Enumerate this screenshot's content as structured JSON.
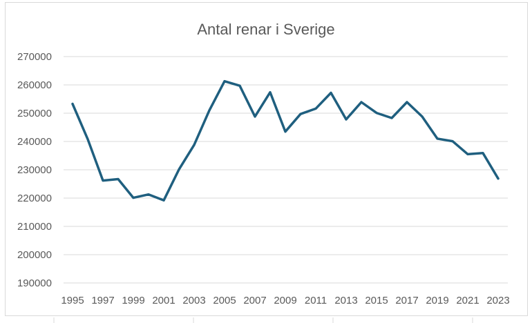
{
  "chart_data": {
    "type": "line",
    "title": "Antal renar i Sverige",
    "xlabel": "",
    "ylabel": "",
    "x": [
      1995,
      1996,
      1997,
      1998,
      1999,
      2000,
      2001,
      2002,
      2003,
      2004,
      2005,
      2006,
      2007,
      2008,
      2009,
      2010,
      2011,
      2012,
      2013,
      2014,
      2015,
      2016,
      2017,
      2018,
      2019,
      2020,
      2021,
      2022,
      2023
    ],
    "x_tick_labels": [
      "1995",
      "1997",
      "1999",
      "2001",
      "2003",
      "2005",
      "2007",
      "2009",
      "2011",
      "2013",
      "2015",
      "2017",
      "2019",
      "2021",
      "2023"
    ],
    "y_tick_labels": [
      "190000",
      "200000",
      "210000",
      "220000",
      "230000",
      "240000",
      "250000",
      "260000",
      "270000"
    ],
    "series": [
      {
        "color": "#1f5f7f",
        "values": [
          253300,
          240800,
          226200,
          226700,
          220100,
          221300,
          219200,
          230100,
          238800,
          251000,
          261300,
          259700,
          248800,
          257400,
          243500,
          249700,
          251600,
          257200,
          247800,
          253900,
          250100,
          248300,
          253900,
          248800,
          241000,
          240100,
          235500,
          235900,
          226900
        ]
      }
    ],
    "ylim": [
      190000,
      270000
    ],
    "grid": true,
    "legend": "none"
  }
}
